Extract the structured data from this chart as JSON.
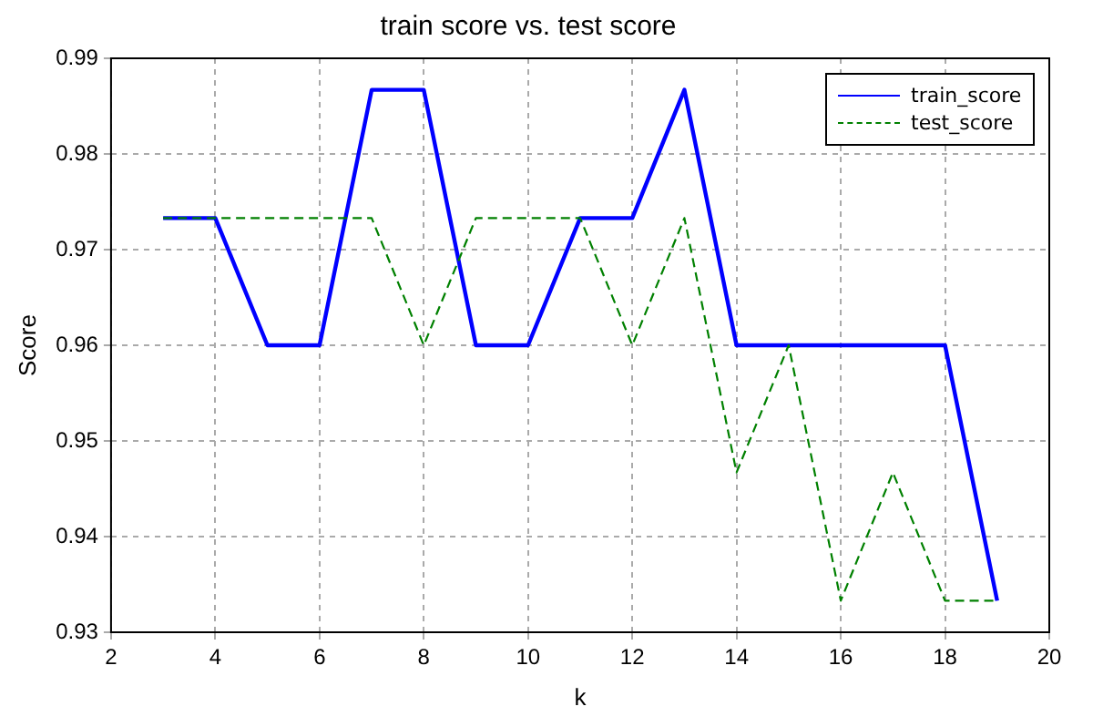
{
  "chart_data": {
    "type": "line",
    "title": "train score vs. test score",
    "xlabel": "k",
    "ylabel": "Score",
    "x": [
      3,
      4,
      5,
      6,
      7,
      8,
      9,
      10,
      11,
      12,
      13,
      14,
      15,
      16,
      17,
      18,
      19
    ],
    "series": [
      {
        "name": "train_score",
        "color": "#0000ff",
        "line_style": "solid",
        "values": [
          0.9733,
          0.9733,
          0.96,
          0.96,
          0.9867,
          0.9867,
          0.96,
          0.96,
          0.9733,
          0.9733,
          0.9867,
          0.96,
          0.96,
          0.96,
          0.96,
          0.96,
          0.9333
        ]
      },
      {
        "name": "test_score",
        "color": "#008000",
        "line_style": "dashed",
        "values": [
          0.9733,
          0.9733,
          0.9733,
          0.9733,
          0.9733,
          0.96,
          0.9733,
          0.9733,
          0.9733,
          0.96,
          0.9733,
          0.9467,
          0.96,
          0.9333,
          0.9467,
          0.9333,
          0.9333
        ]
      }
    ],
    "xlim": [
      2,
      20
    ],
    "xticks": [
      2,
      4,
      6,
      8,
      10,
      12,
      14,
      16,
      18,
      20
    ],
    "ylim": [
      0.93,
      0.99
    ],
    "yticks": [
      0.93,
      0.94,
      0.95,
      0.96,
      0.97,
      0.98,
      0.99
    ],
    "grid": true,
    "legend": "top right",
    "marker": "none"
  }
}
